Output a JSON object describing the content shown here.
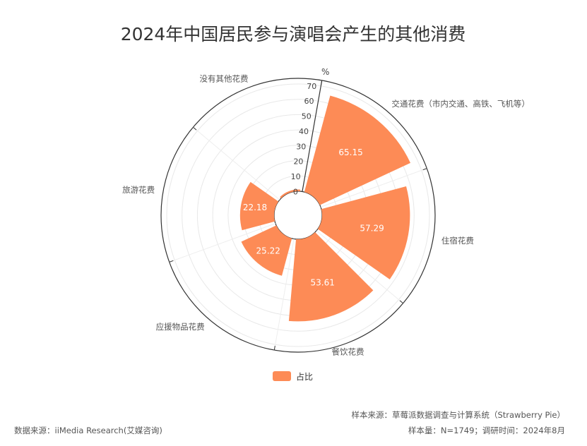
{
  "chart_data": {
    "type": "bar",
    "subtype": "polar-bar",
    "title": "2024年中国居民参与演唱会产生的其他消费",
    "radial_axis": {
      "unit": "%",
      "range": [
        0,
        70
      ],
      "ticks": [
        "0",
        "10",
        "20",
        "30",
        "40",
        "50",
        "60",
        "70"
      ]
    },
    "categories": [
      "交通花费（市内交通、高铁、飞机等）",
      "住宿花费",
      "餐饮花费",
      "应援物品花费",
      "旅游花费",
      "没有其他花费"
    ],
    "series": [
      {
        "name": "占比",
        "values": [
          65.15,
          57.29,
          53.61,
          25.22,
          22.18,
          1.14
        ],
        "labels": [
          "65.15",
          "57.29",
          "53.61",
          "25.22",
          "22.18",
          "1.14"
        ]
      }
    ],
    "color": "#fd8b56",
    "legend_position": "bottom-center",
    "grid": true
  },
  "footer": {
    "sample_source": "样本来源：草莓派数据调查与计算系统（Strawberry Pie）",
    "data_source": "数据来源：iiMedia Research(艾媒咨询)",
    "sample_info": "样本量：N=1749；调研时间：2024年8月"
  }
}
